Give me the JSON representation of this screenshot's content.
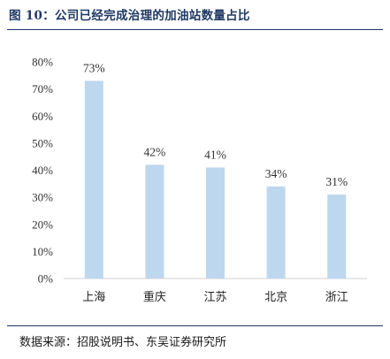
{
  "figure": {
    "title": "图 10：公司已经完成治理的加油站数量占比",
    "source": "数据来源：招股说明书、东吴证券研究所"
  },
  "chart_data": {
    "type": "bar",
    "title": "图 10：公司已经完成治理的加油站数量占比",
    "categories": [
      "上海",
      "重庆",
      "江苏",
      "北京",
      "浙江"
    ],
    "values": [
      73,
      42,
      41,
      34,
      31
    ],
    "data_labels": [
      "73%",
      "42%",
      "41%",
      "34%",
      "31%"
    ],
    "yticks": [
      "0%",
      "10%",
      "20%",
      "30%",
      "40%",
      "50%",
      "60%",
      "70%",
      "80%"
    ],
    "ylim": [
      0,
      80
    ],
    "grid": false,
    "bar_color": "#bdd7ee",
    "title_color": "#1f3864"
  }
}
